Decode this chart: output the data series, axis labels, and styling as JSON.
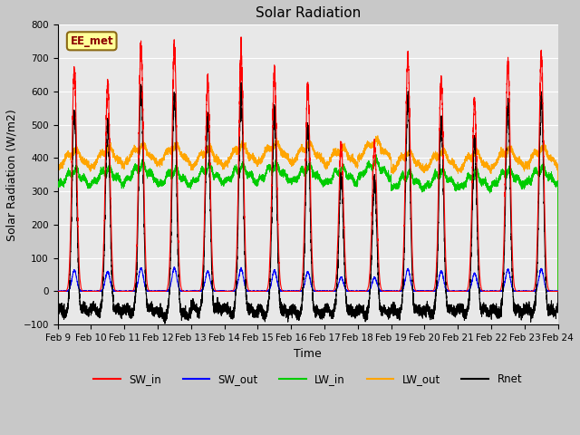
{
  "title": "Solar Radiation",
  "xlabel": "Time",
  "ylabel": "Solar Radiation (W/m2)",
  "ylim": [
    -100,
    800
  ],
  "x_tick_labels": [
    "Feb 9",
    "Feb 10",
    "Feb 11",
    "Feb 12",
    "Feb 13",
    "Feb 14",
    "Feb 15",
    "Feb 16",
    "Feb 17",
    "Feb 18",
    "Feb 19",
    "Feb 20",
    "Feb 21",
    "Feb 22",
    "Feb 23",
    "Feb 24"
  ],
  "series_colors": {
    "SW_in": "#ff0000",
    "SW_out": "#0000ff",
    "LW_in": "#00cc00",
    "LW_out": "#ffa500",
    "Rnet": "#000000"
  },
  "legend_labels": [
    "SW_in",
    "SW_out",
    "LW_in",
    "LW_out",
    "Rnet"
  ],
  "annotation_text": "EE_met",
  "annotation_box_color": "#ffff99",
  "annotation_box_edge": "#8B6914",
  "annotation_text_color": "#8B0000",
  "axes_bg": "#e8e8e8",
  "grid_color": "#ffffff",
  "n_days": 15,
  "pts_per_day": 480,
  "SW_in_peaks": [
    670,
    625,
    730,
    735,
    630,
    710,
    655,
    615,
    440,
    440,
    700,
    630,
    570,
    685,
    705
  ],
  "LW_in_bases": [
    310,
    315,
    325,
    310,
    318,
    320,
    325,
    320,
    315,
    335,
    300,
    305,
    300,
    310,
    315
  ],
  "LW_out_bases": [
    355,
    360,
    370,
    368,
    358,
    368,
    375,
    372,
    362,
    385,
    348,
    352,
    348,
    358,
    362
  ],
  "night_rnet": [
    -50,
    -55,
    -60,
    -52,
    -48,
    -55,
    -58,
    -50,
    -52,
    -65,
    -45,
    -50,
    -48,
    -52,
    -55
  ]
}
